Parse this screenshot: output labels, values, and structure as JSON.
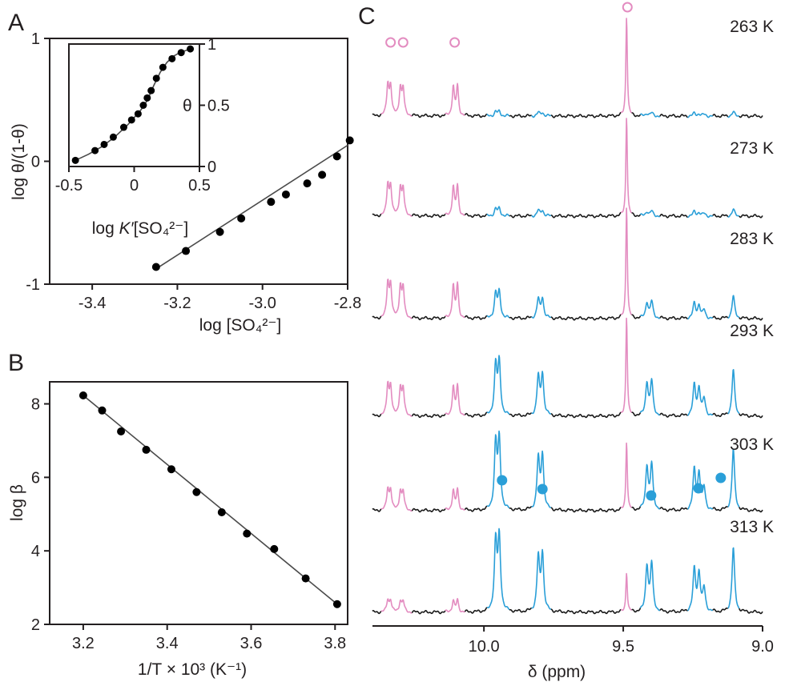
{
  "colors": {
    "ink": "#231f20",
    "bound": "#e38cc0",
    "free": "#2a9fd8",
    "baseline": "#1a1a1a",
    "fit_line": "#4a4a4a"
  },
  "panels": {
    "A": {
      "letter": "A"
    },
    "B": {
      "letter": "B"
    },
    "C": {
      "letter": "C"
    }
  },
  "chart_data": [
    {
      "panel": "A",
      "type": "scatter",
      "xlabel": "log [SO₄²⁻]",
      "ylabel": "log θ/(1-θ)",
      "xlim": [
        -3.5,
        -2.8
      ],
      "ylim": [
        -1,
        1
      ],
      "xticks": [
        -3.4,
        -3.2,
        -3.0,
        -2.8
      ],
      "xtick_labels": [
        "-3.4",
        "-3.2",
        "-3.0",
        "-2.8"
      ],
      "yticks": [
        -1,
        0,
        1
      ],
      "ytick_labels": [
        "-1",
        "0",
        "1"
      ],
      "points": {
        "x": [
          -3.25,
          -3.18,
          -3.1,
          -3.05,
          -2.98,
          -2.945,
          -2.895,
          -2.86,
          -2.825,
          -2.795
        ],
        "y": [
          -0.86,
          -0.73,
          -0.575,
          -0.465,
          -0.33,
          -0.27,
          -0.18,
          -0.11,
          0.04,
          0.17
        ]
      },
      "fit": {
        "x": [
          -3.25,
          -2.8
        ],
        "y": [
          -0.875,
          0.13
        ]
      }
    },
    {
      "panel": "A-inset",
      "type": "scatter",
      "xlabel_pre": "log ",
      "xlabel_k": "K′",
      "xlabel_post": "[SO₄²⁻]",
      "ylabel": "θ",
      "xlim": [
        -0.5,
        0.5
      ],
      "ylim": [
        0,
        1
      ],
      "xticks": [
        -0.5,
        0,
        0.5
      ],
      "xtick_labels": [
        "-0.5",
        "0",
        "0.5"
      ],
      "yticks": [
        0,
        0.5,
        1
      ],
      "ytick_labels": [
        "0",
        "0.5",
        "1"
      ],
      "points": {
        "x": [
          -0.45,
          -0.3,
          -0.23,
          -0.16,
          -0.08,
          -0.02,
          0.03,
          0.07,
          0.1,
          0.13,
          0.17,
          0.22,
          0.29,
          0.36,
          0.43
        ],
        "y": [
          0.05,
          0.13,
          0.18,
          0.24,
          0.32,
          0.38,
          0.43,
          0.5,
          0.56,
          0.62,
          0.72,
          0.81,
          0.88,
          0.93,
          0.96
        ]
      },
      "fit": {
        "x": [
          -0.45,
          -0.35,
          -0.25,
          -0.15,
          -0.05,
          0.05,
          0.1,
          0.15,
          0.2,
          0.25,
          0.3,
          0.35,
          0.43
        ],
        "y": [
          0.05,
          0.1,
          0.16,
          0.24,
          0.34,
          0.46,
          0.54,
          0.66,
          0.77,
          0.85,
          0.9,
          0.93,
          0.96
        ]
      }
    },
    {
      "panel": "B",
      "type": "scatter",
      "xlabel": "1/T × 10³ (K⁻¹)",
      "ylabel": "log β",
      "xlim": [
        3.12,
        3.83
      ],
      "ylim": [
        2,
        8.6
      ],
      "xticks": [
        3.2,
        3.4,
        3.6,
        3.8
      ],
      "xtick_labels": [
        "3.2",
        "3.4",
        "3.6",
        "3.8"
      ],
      "yticks": [
        2,
        4,
        6,
        8
      ],
      "ytick_labels": [
        "2",
        "4",
        "6",
        "8"
      ],
      "points": {
        "x": [
          3.2,
          3.245,
          3.29,
          3.35,
          3.41,
          3.47,
          3.53,
          3.59,
          3.655,
          3.73,
          3.805
        ],
        "y": [
          8.23,
          7.82,
          7.25,
          6.75,
          6.22,
          5.6,
          5.05,
          4.47,
          4.05,
          3.25,
          2.55
        ]
      },
      "fit": {
        "x": [
          3.2,
          3.805
        ],
        "y": [
          8.23,
          2.55
        ]
      }
    },
    {
      "panel": "C",
      "type": "line",
      "xlabel": "δ (ppm)",
      "xlim": [
        10.4,
        9.0
      ],
      "reversed_x": true,
      "xticks": [
        10.0,
        9.5,
        9.0
      ],
      "xtick_labels": [
        "10.0",
        "9.5",
        "9.0"
      ],
      "series": [
        {
          "name": "263 K",
          "scale": 0.55,
          "blue": 0.06
        },
        {
          "name": "273 K",
          "scale": 0.55,
          "blue": 0.1
        },
        {
          "name": "283 K",
          "scale": 0.62,
          "blue": 0.35
        },
        {
          "name": "293 K",
          "scale": 0.55,
          "blue": 0.72
        },
        {
          "name": "303 K",
          "scale": 0.38,
          "blue": 0.95
        },
        {
          "name": "313 K",
          "scale": 0.22,
          "blue": 1.0
        }
      ],
      "bound_peaks_ppm": [
        10.34,
        10.31,
        10.29,
        10.26,
        10.11,
        10.09,
        9.49
      ],
      "free_peaks_ppm": [
        9.955,
        9.94,
        9.8,
        9.79,
        9.41,
        9.39,
        9.24,
        9.22,
        9.1
      ],
      "open_markers_ppm": [
        10.335,
        10.29,
        10.105,
        9.485
      ],
      "filled_markers_ppm": [
        9.935,
        9.79,
        9.4,
        9.23,
        9.15
      ]
    }
  ]
}
